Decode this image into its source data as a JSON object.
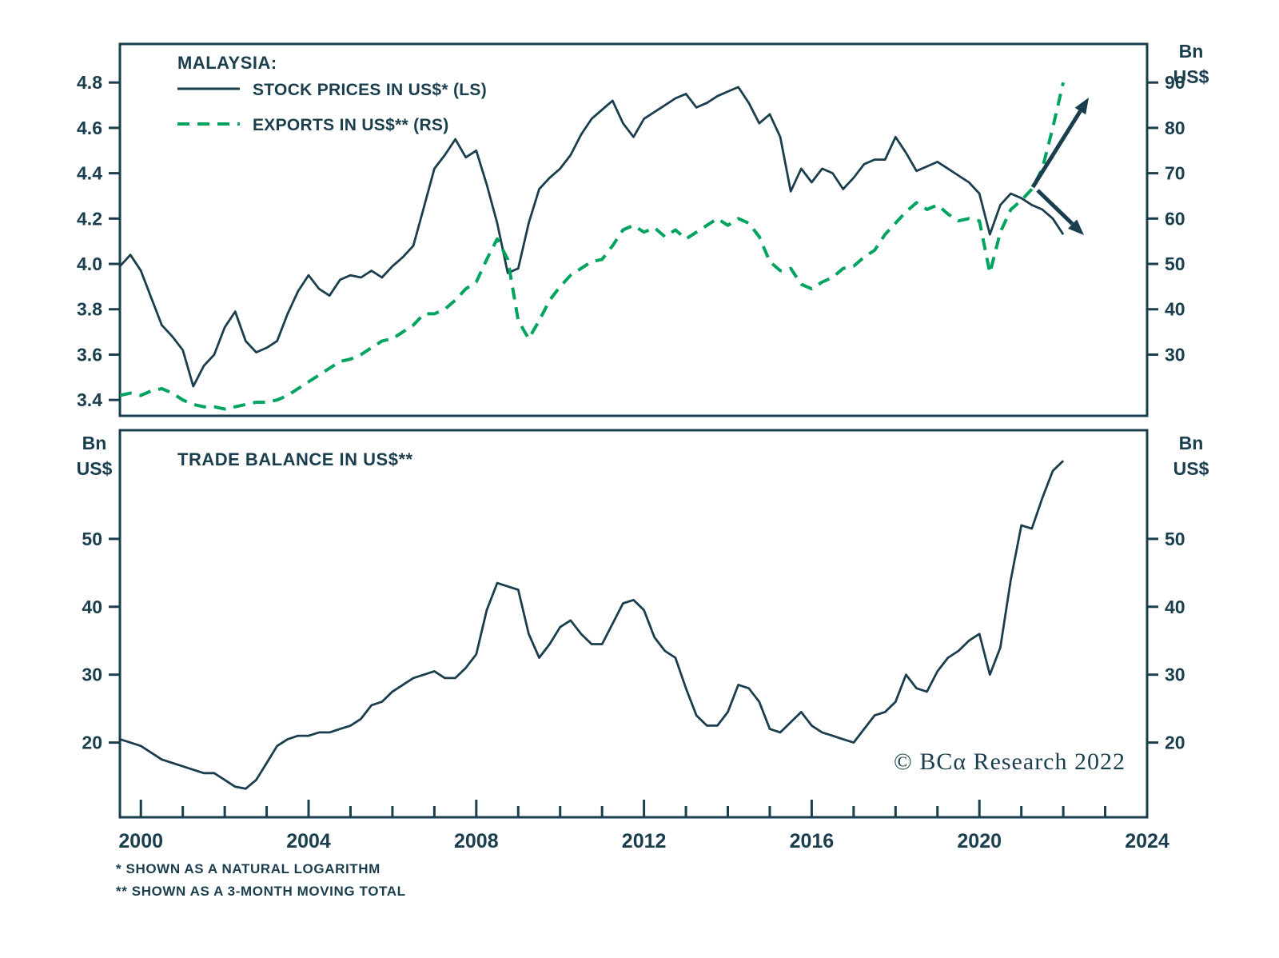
{
  "labels": {
    "unit_bn": "Bn",
    "unit_usd": "US$",
    "copyright": "© BCα Research 2022",
    "footnote_1": "*  SHOWN AS A NATURAL LOGARITHM",
    "footnote_2": "** SHOWN AS A 3-MONTH MOVING TOTAL"
  },
  "colors": {
    "dark": "#1a3e4d",
    "green": "#00a45f",
    "background": "#ffffff"
  },
  "chart_data": [
    {
      "type": "line",
      "title": "MALAYSIA:",
      "x_range": [
        1999.5,
        2024
      ],
      "x_step": 0.25,
      "left_axis": {
        "ticks": [
          "3.4",
          "3.6",
          "3.8",
          "4.0",
          "4.2",
          "4.4",
          "4.6",
          "4.8"
        ],
        "range": [
          3.33,
          4.97
        ]
      },
      "right_axis": {
        "unit": "Bn US$",
        "ticks": [
          "30",
          "40",
          "50",
          "60",
          "70",
          "80",
          "90"
        ],
        "range": [
          16.5,
          98.5
        ]
      },
      "series": [
        {
          "name": "STOCK PRICES IN US$* (LS)",
          "axis": "left",
          "line": "solid",
          "color": "dark",
          "x_start": 1999.5,
          "values": [
            3.99,
            4.04,
            3.97,
            3.85,
            3.73,
            3.68,
            3.62,
            3.46,
            3.55,
            3.6,
            3.72,
            3.79,
            3.66,
            3.61,
            3.63,
            3.66,
            3.78,
            3.88,
            3.95,
            3.89,
            3.86,
            3.93,
            3.95,
            3.94,
            3.97,
            3.94,
            3.99,
            4.03,
            4.08,
            4.25,
            4.42,
            4.48,
            4.55,
            4.47,
            4.5,
            4.35,
            4.18,
            3.96,
            3.98,
            4.18,
            4.33,
            4.38,
            4.42,
            4.48,
            4.57,
            4.64,
            4.68,
            4.72,
            4.62,
            4.56,
            4.64,
            4.67,
            4.7,
            4.73,
            4.75,
            4.69,
            4.71,
            4.74,
            4.76,
            4.78,
            4.71,
            4.62,
            4.66,
            4.56,
            4.32,
            4.42,
            4.36,
            4.42,
            4.4,
            4.33,
            4.38,
            4.44,
            4.46,
            4.46,
            4.56,
            4.49,
            4.41,
            4.43,
            4.45,
            4.42,
            4.39,
            4.36,
            4.31,
            4.13,
            4.26,
            4.31,
            4.29,
            4.26,
            4.24,
            4.2,
            4.13
          ]
        },
        {
          "name": "EXPORTS IN US$** (RS)",
          "axis": "right",
          "line": "dashed",
          "color": "green",
          "x_start": 1999.5,
          "values": [
            21,
            21.5,
            21,
            22,
            22.5,
            21.5,
            20,
            19,
            18.5,
            18.5,
            18,
            18.5,
            19,
            19.5,
            19.5,
            20,
            21,
            22.5,
            24,
            25.5,
            27,
            28.5,
            29,
            30,
            31.5,
            33,
            33.5,
            35,
            36.5,
            39,
            39,
            40,
            42,
            44.5,
            46,
            51,
            55.5,
            51,
            37.5,
            33.5,
            37.5,
            42,
            45,
            47.5,
            49,
            50.5,
            51,
            54,
            57.5,
            58.5,
            57,
            58,
            56,
            57.5,
            55.5,
            57,
            58.5,
            60,
            58.5,
            60,
            59,
            56,
            50.5,
            48.5,
            49,
            45.5,
            44.5,
            46,
            47,
            49,
            49.5,
            51.5,
            53,
            56.5,
            59,
            61.5,
            63.5,
            62,
            63,
            61,
            59.5,
            60,
            59.5,
            48,
            57,
            62,
            64,
            66.5,
            71,
            80,
            90
          ]
        }
      ],
      "annotations": [
        "exports-up-arrow",
        "stocks-down-arrow"
      ]
    },
    {
      "type": "line",
      "title": "TRADE BALANCE IN US$**",
      "x_range": [
        1999.5,
        2024
      ],
      "x_step": 0.25,
      "left_axis": {
        "unit": "Bn US$",
        "ticks": [
          "20",
          "30",
          "40",
          "50"
        ],
        "range": [
          9,
          66
        ]
      },
      "right_axis": {
        "unit": "Bn US$",
        "ticks": [
          "20",
          "30",
          "40",
          "50"
        ],
        "range": [
          9,
          66
        ]
      },
      "x_axis": {
        "minor_tick_years": 1,
        "labels": [
          "2000",
          "2004",
          "2008",
          "2012",
          "2016",
          "2020",
          "2024"
        ]
      },
      "series": [
        {
          "name": "TRADE BALANCE IN US$**",
          "axis": "left",
          "line": "solid",
          "color": "dark",
          "x_start": 1999.5,
          "values": [
            20.5,
            20,
            19.5,
            18.5,
            17.5,
            17,
            16.5,
            16,
            15.5,
            15.5,
            14.5,
            13.5,
            13.2,
            14.5,
            17,
            19.5,
            20.5,
            21,
            21,
            21.5,
            21.5,
            22,
            22.5,
            23.5,
            25.5,
            26,
            27.5,
            28.5,
            29.5,
            30,
            30.5,
            29.5,
            29.5,
            31,
            33,
            39.5,
            43.5,
            43,
            42.5,
            36,
            32.5,
            34.5,
            37,
            38,
            36,
            34.5,
            34.5,
            37.5,
            40.5,
            41,
            39.5,
            35.5,
            33.5,
            32.5,
            28,
            24,
            22.5,
            22.5,
            24.5,
            28.5,
            28,
            26,
            22,
            21.5,
            23,
            24.5,
            22.5,
            21.5,
            21,
            20.5,
            20,
            22,
            24,
            24.5,
            26,
            30,
            28,
            27.5,
            30.5,
            32.5,
            33.5,
            35,
            36,
            30,
            34,
            44,
            52,
            51.5,
            56,
            60,
            61.5
          ]
        }
      ]
    }
  ]
}
